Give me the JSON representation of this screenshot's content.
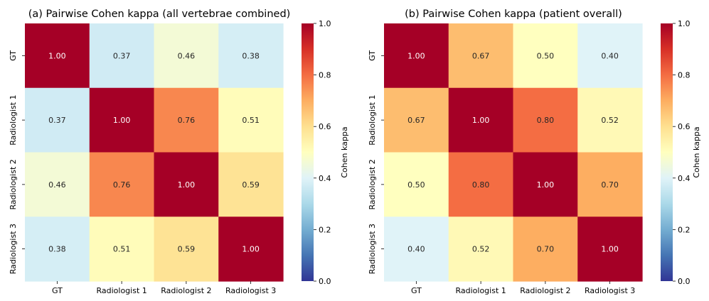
{
  "chart_data": [
    {
      "type": "heatmap",
      "title": "(a) Pairwise Cohen kappa (all vertebrae combined)",
      "x_categories": [
        "GT",
        "Radiologist 1",
        "Radiologist 2",
        "Radiologist 3"
      ],
      "y_categories": [
        "GT",
        "Radiologist 1",
        "Radiologist 2",
        "Radiologist 3"
      ],
      "values": [
        [
          1.0,
          0.37,
          0.46,
          0.38
        ],
        [
          0.37,
          1.0,
          0.76,
          0.51
        ],
        [
          0.46,
          0.76,
          1.0,
          0.59
        ],
        [
          0.38,
          0.51,
          0.59,
          1.0
        ]
      ],
      "colorbar": {
        "label": "Cohen kappa",
        "range": [
          0.0,
          1.0
        ],
        "ticks": [
          "0.0",
          "0.2",
          "0.4",
          "0.6",
          "0.8",
          "1.0"
        ],
        "colormap": "RdYlBu_r"
      }
    },
    {
      "type": "heatmap",
      "title": "(b) Pairwise Cohen kappa (patient overall)",
      "x_categories": [
        "GT",
        "Radiologist 1",
        "Radiologist 2",
        "Radiologist 3"
      ],
      "y_categories": [
        "GT",
        "Radiologist 1",
        "Radiologist 2",
        "Radiologist 3"
      ],
      "values": [
        [
          1.0,
          0.67,
          0.5,
          0.4
        ],
        [
          0.67,
          1.0,
          0.8,
          0.52
        ],
        [
          0.5,
          0.8,
          1.0,
          0.7
        ],
        [
          0.4,
          0.52,
          0.7,
          1.0
        ]
      ],
      "colorbar": {
        "label": "Cohen kappa",
        "range": [
          0.0,
          1.0
        ],
        "ticks": [
          "0.0",
          "0.2",
          "0.4",
          "0.6",
          "0.8",
          "1.0"
        ],
        "colormap": "RdYlBu_r"
      }
    }
  ]
}
